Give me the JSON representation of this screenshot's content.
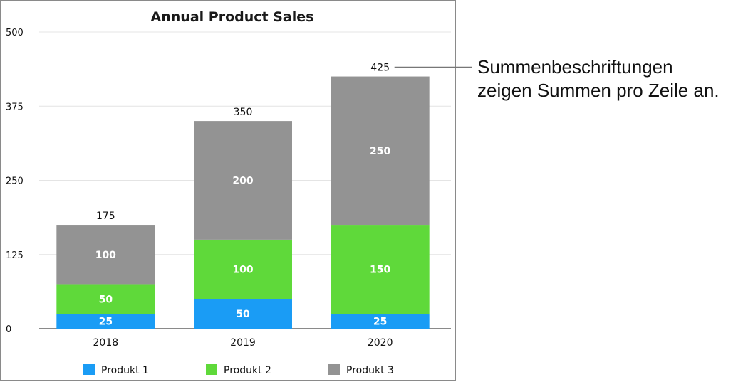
{
  "chart_data": {
    "type": "bar",
    "stacked": true,
    "title": "Annual Product Sales",
    "categories": [
      "2018",
      "2019",
      "2020"
    ],
    "series": [
      {
        "name": "Produkt 1",
        "color": "#1a9cf5",
        "values": [
          25,
          50,
          25
        ]
      },
      {
        "name": "Produkt 2",
        "color": "#5fd93a",
        "values": [
          50,
          100,
          150
        ]
      },
      {
        "name": "Produkt 3",
        "color": "#939393",
        "values": [
          100,
          200,
          250
        ]
      }
    ],
    "totals": [
      175,
      350,
      425
    ],
    "ylim": [
      0,
      500
    ],
    "yticks": [
      0,
      125,
      250,
      375,
      500
    ],
    "grid": true,
    "legend": "bottom"
  },
  "callout": {
    "line1": "Summenbeschriftungen",
    "line2": "zeigen Summen pro Zeile an."
  }
}
